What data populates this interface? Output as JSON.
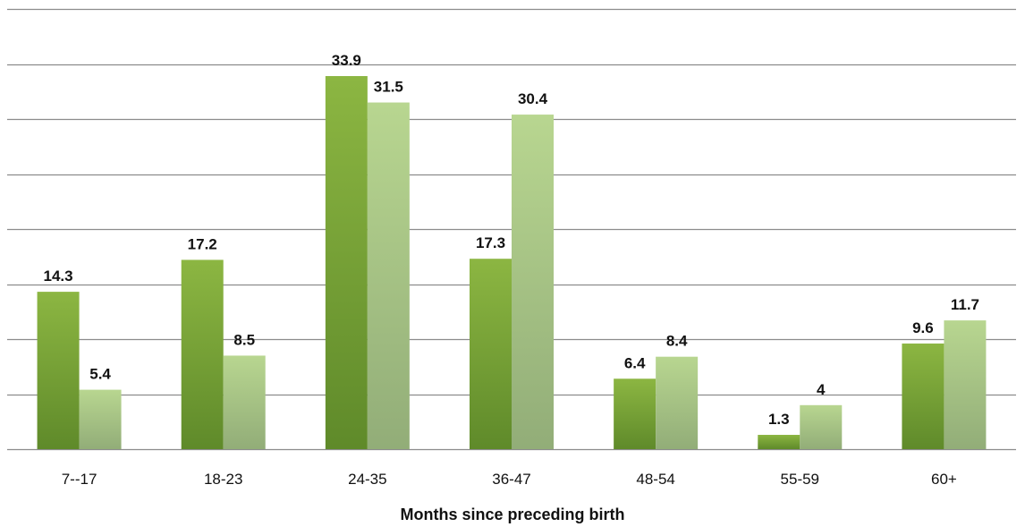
{
  "chart_data": {
    "type": "bar",
    "title": "",
    "xlabel": "Months since preceding birth",
    "ylabel": "",
    "categories": [
      "7--17",
      "18-23",
      "24-35",
      "36-47",
      "48-54",
      "55-59",
      "60+"
    ],
    "series": [
      {
        "values": [
          14.3,
          17.2,
          33.9,
          17.3,
          6.4,
          1.3,
          9.6
        ],
        "color": "#7aa63a"
      },
      {
        "values": [
          5.4,
          8.5,
          31.5,
          30.4,
          8.4,
          4,
          11.7
        ],
        "color": "#a9c88a"
      }
    ],
    "ylim": [
      0,
      40
    ],
    "grid": true,
    "legend": "none",
    "data_labels": true
  }
}
